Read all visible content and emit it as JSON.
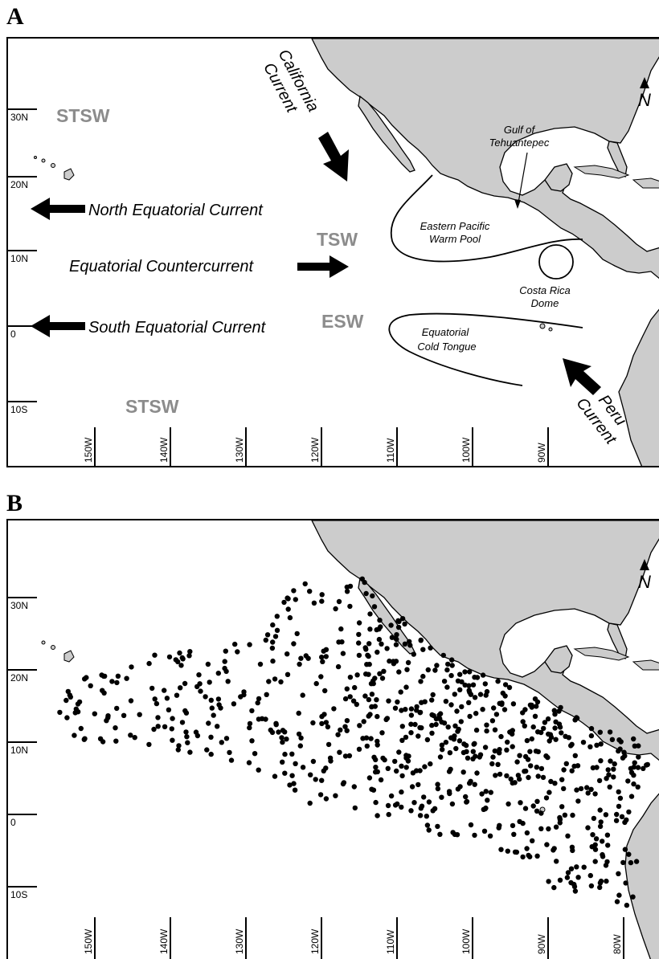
{
  "panels": {
    "a": {
      "letter": "A"
    },
    "b": {
      "letter": "B"
    }
  },
  "lat_labels": [
    "30N",
    "20N",
    "10N",
    "0",
    "10S"
  ],
  "lon_labels_a": [
    "150W",
    "140W",
    "130W",
    "120W",
    "110W",
    "100W",
    "90W"
  ],
  "lon_labels_b": [
    "150W",
    "140W",
    "130W",
    "120W",
    "110W",
    "100W",
    "90W",
    "80W"
  ],
  "water_masses": {
    "stsw_north": "STSW",
    "tsw": "TSW",
    "esw": "ESW",
    "stsw_south": "STSW"
  },
  "currents": {
    "california_line1": "California",
    "california_line2": "Current",
    "north_equatorial": "North Equatorial Current",
    "equatorial_counter": "Equatorial Countercurrent",
    "south_equatorial": "South Equatorial Current",
    "peru_line1": "Peru",
    "peru_line2": "Current"
  },
  "features": {
    "gulf_line1": "Gulf of",
    "gulf_line2": "Tehuantepec",
    "warm_pool_line1": "Eastern Pacific",
    "warm_pool_line2": "Warm Pool",
    "dome_line1": "Costa Rica",
    "dome_line2": "Dome",
    "cold_tongue_line1": "Equatorial",
    "cold_tongue_line2": "Cold Tongue"
  },
  "north_arrow": "N",
  "colors": {
    "land": "#cccccc",
    "water_mass_text": "#8c8c8c",
    "ink": "#000000"
  },
  "sightings_count_drawn": "dense scatter of survey locations"
}
